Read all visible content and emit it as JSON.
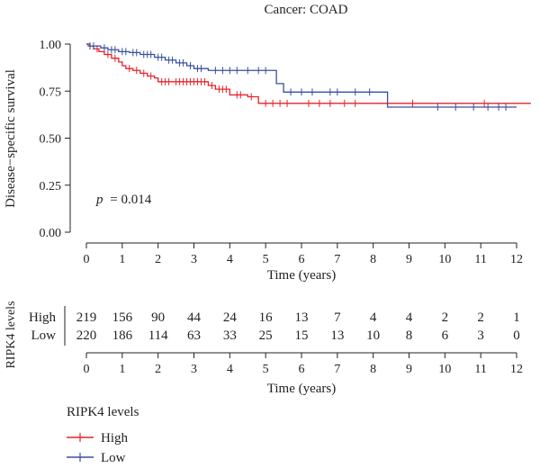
{
  "chart_data": [
    {
      "type": "line",
      "subtype": "kaplan-meier",
      "title": "Cancer: COAD",
      "xlabel": "Time (years)",
      "ylabel": "Disease−specific survival",
      "xlim": [
        0,
        12
      ],
      "ylim": [
        0,
        1
      ],
      "x_ticks": [
        "0",
        "1",
        "2",
        "3",
        "4",
        "5",
        "6",
        "7",
        "8",
        "9",
        "10",
        "11",
        "12"
      ],
      "y_ticks": [
        "0.00",
        "0.25",
        "0.50",
        "0.75",
        "1.00"
      ],
      "annotation": {
        "p_label": "p",
        "p_value": "= 0.014"
      },
      "series": [
        {
          "name": "High",
          "color": "#e8222a",
          "x": [
            0,
            0.05,
            0.2,
            0.35,
            0.5,
            0.7,
            0.9,
            1.0,
            1.1,
            1.3,
            1.5,
            1.7,
            1.9,
            2.0,
            2.4,
            3.4,
            3.6,
            4.0,
            4.5,
            4.8,
            12.4
          ],
          "y": [
            1.0,
            0.99,
            0.975,
            0.96,
            0.945,
            0.925,
            0.905,
            0.885,
            0.87,
            0.86,
            0.845,
            0.83,
            0.82,
            0.8,
            0.8,
            0.78,
            0.76,
            0.73,
            0.72,
            0.685,
            0.685
          ],
          "censored_x": [
            0.1,
            0.3,
            0.6,
            0.8,
            1.2,
            1.4,
            1.6,
            1.8,
            2.1,
            2.2,
            2.3,
            2.5,
            2.6,
            2.7,
            2.8,
            2.9,
            3.0,
            3.1,
            3.2,
            3.3,
            3.5,
            3.7,
            3.8,
            3.9,
            4.2,
            4.3,
            4.6,
            5.0,
            5.2,
            5.4,
            5.6,
            6.2,
            6.5,
            6.8,
            7.2,
            7.5,
            9.1,
            11.1
          ]
        },
        {
          "name": "Low",
          "color": "#3a4fa0",
          "x": [
            0,
            0.1,
            0.4,
            0.6,
            0.9,
            1.2,
            1.5,
            1.9,
            2.2,
            2.5,
            2.8,
            3.0,
            3.4,
            5.3,
            5.5,
            8.4,
            12.0
          ],
          "y": [
            1.0,
            0.99,
            0.98,
            0.97,
            0.96,
            0.955,
            0.945,
            0.93,
            0.915,
            0.9,
            0.885,
            0.87,
            0.86,
            0.79,
            0.745,
            0.665,
            0.665
          ],
          "censored_x": [
            0.1,
            0.2,
            0.5,
            0.7,
            0.8,
            1.0,
            1.1,
            1.3,
            1.4,
            1.6,
            1.7,
            1.8,
            2.0,
            2.1,
            2.3,
            2.4,
            2.6,
            2.7,
            2.9,
            3.1,
            3.2,
            3.6,
            3.8,
            4.0,
            4.2,
            4.5,
            4.8,
            5.0,
            5.7,
            6.0,
            6.3,
            6.8,
            7.0,
            7.5,
            7.9,
            9.8,
            10.3,
            10.8,
            11.2,
            11.5,
            11.7
          ]
        }
      ]
    },
    {
      "type": "table",
      "title": "RIPK4 levels",
      "xlabel": "Time (years)",
      "xlim": [
        0,
        12
      ],
      "x_ticks": [
        "0",
        "1",
        "2",
        "3",
        "4",
        "5",
        "6",
        "7",
        "8",
        "9",
        "10",
        "11",
        "12"
      ],
      "rows": [
        {
          "name": "High",
          "color": "#e8222a",
          "values": [
            "219",
            "156",
            "90",
            "44",
            "24",
            "16",
            "13",
            "7",
            "4",
            "4",
            "2",
            "2",
            "1"
          ]
        },
        {
          "name": "Low",
          "color": "#3a4fa0",
          "values": [
            "220",
            "186",
            "114",
            "63",
            "33",
            "25",
            "15",
            "13",
            "10",
            "8",
            "6",
            "3",
            "0"
          ]
        }
      ]
    }
  ],
  "legend": {
    "title": "RIPK4 levels",
    "items": [
      {
        "label": "High",
        "color": "#e8222a"
      },
      {
        "label": "Low",
        "color": "#3a4fa0"
      }
    ]
  }
}
